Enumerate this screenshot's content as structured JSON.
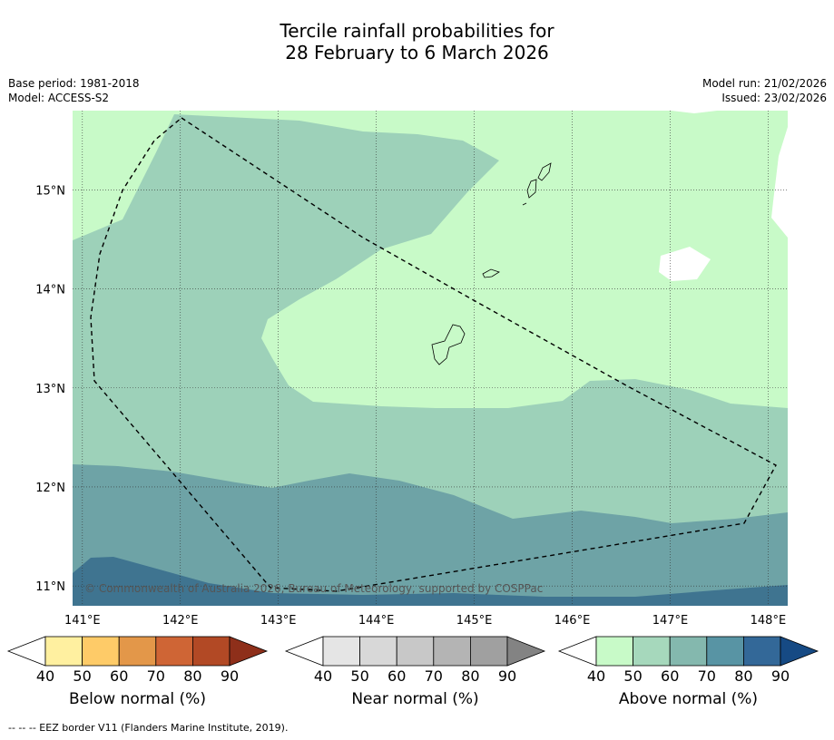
{
  "title": {
    "line1": "Tercile rainfall probabilities for",
    "line2": "28 February to 6 March 2026"
  },
  "meta": {
    "base_period": "Base period: 1981-2018",
    "model": "Model: ACCESS-S2",
    "model_run": "Model run: 21/02/2026",
    "issued": "Issued: 23/02/2026"
  },
  "map": {
    "lon_range": [
      140.9,
      148.2
    ],
    "lat_range": [
      10.8,
      15.8
    ],
    "lon_ticks": [
      "141°E",
      "142°E",
      "143°E",
      "144°E",
      "145°E",
      "146°E",
      "147°E",
      "148°E"
    ],
    "lat_ticks": [
      "15°N",
      "14°N",
      "13°N",
      "12°N",
      "11°N"
    ],
    "copyright": "© Commonwealth of Australia 2026, Bureau of Meteorology, supported by COSPPac",
    "colors": {
      "above_40_50": "#c8fac8",
      "above_50_60": "#9dd1b9",
      "above_60_70": "#6ea3a6",
      "above_70_80": "#3f7490",
      "no_data": "#ffffff"
    }
  },
  "colorbars": [
    {
      "name": "below",
      "label": "Below normal (%)",
      "ticks": [
        "40",
        "50",
        "60",
        "70",
        "80",
        "90"
      ],
      "colors": [
        "#ffffff",
        "#fff0a0",
        "#fecb68",
        "#e39749",
        "#cf6535",
        "#b24925",
        "#8e2f1a"
      ]
    },
    {
      "name": "near",
      "label": "Near normal (%)",
      "ticks": [
        "40",
        "50",
        "60",
        "70",
        "80",
        "90"
      ],
      "colors": [
        "#ffffff",
        "#e5e5e5",
        "#d8d8d8",
        "#c8c8c8",
        "#b4b4b4",
        "#a0a0a0",
        "#838383"
      ]
    },
    {
      "name": "above",
      "label": "Above normal (%)",
      "ticks": [
        "40",
        "50",
        "60",
        "70",
        "80",
        "90"
      ],
      "colors": [
        "#ffffff",
        "#c8fac8",
        "#a6d8bc",
        "#84b8ae",
        "#5894a4",
        "#336898",
        "#164a84"
      ]
    }
  ],
  "legend": {
    "eez": "--  --  -- EEZ border V11 (Flanders Marine Institute, 2019)."
  }
}
